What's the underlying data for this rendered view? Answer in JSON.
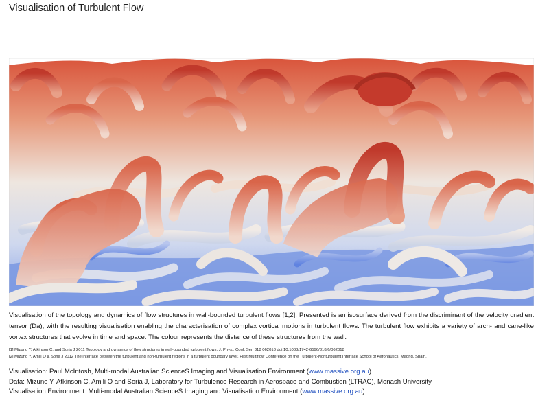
{
  "title": "Visualisation of Turbulent Flow",
  "figure": {
    "subject": "turbulent-flow-isosurface",
    "colors": {
      "near_wall": "#5b7fe0",
      "mid": "#e8e2dc",
      "far_from_wall": "#c0392b"
    }
  },
  "description": "Visualisation of the topology and dynamics of flow structures in wall-bounded turbulent flows [1,2]. Presented is an isosurface derived from the discriminant of the velocity gradient tensor (Da), with the resulting visualisation enabling the characterisation of complex vortical motions in turbulent flows. The turbulent flow exhibits a variety of arch- and cane-like vortex structures that evolve in time and space. The colour represents the distance of these structures from the wall.",
  "references": [
    "[1] Mizuno Y, Atkinson C, and Soria J 2011 Topology and dynamics of flow structures in wall-bounded turbulent flows. J. Phys.: Conf. Ser. 318 062018 doi:10.1088/1742-6596/318/6/062018",
    "[2] Mizuno Y, Amili O & Soria J 2012 The interface between the turbulent and non-turbulent regions in a turbulent boundary layer. First Multiflow Conference on the Turbulent-Nonturbulent Interface School of Aeronautics, Madrid, Spain."
  ],
  "credits": {
    "visualisation_prefix": "Visualisation: Paul McIntosh, Multi-modal Australian ScienceS Imaging and Visualisation Environment (",
    "visualisation_link": "www.massive.org.au",
    "visualisation_suffix": ")",
    "data": "Data: Mizuno Y, Atkinson C, Amili O and Soria J, Laboratory for Turbulence Research in Aerospace and Combustion (LTRAC), Monash University",
    "environment_prefix": "Visualisation Environment: Multi-modal Australian ScienceS Imaging and Visualisation Environment (",
    "environment_link": "www.massive.org.au",
    "environment_suffix": ")"
  }
}
